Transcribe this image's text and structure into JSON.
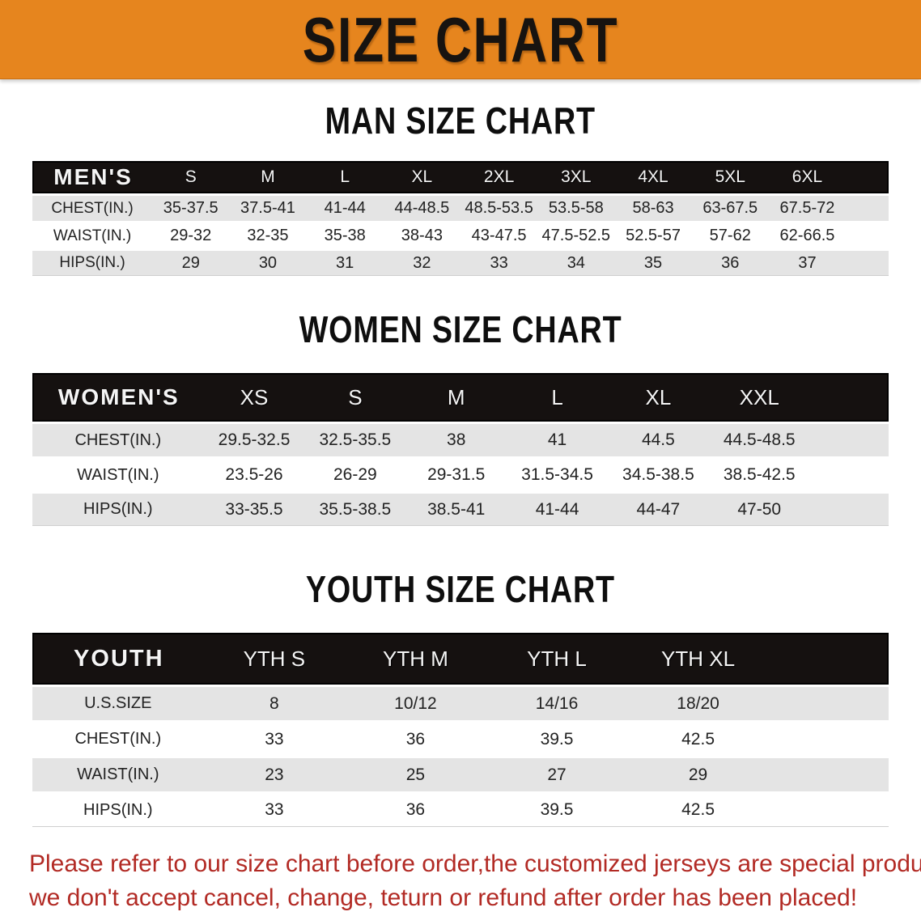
{
  "banner": {
    "title": "SIZE CHART",
    "bg_color": "#e6851e",
    "text_color": "#171310"
  },
  "sections": [
    {
      "heading": "MAN SIZE CHART",
      "table": {
        "header_label": "MEN'S",
        "columns": [
          "S",
          "M",
          "L",
          "XL",
          "2XL",
          "3XL",
          "4XL",
          "5XL",
          "6XL"
        ],
        "rows": [
          {
            "label": "CHEST(IN.)",
            "values": [
              "35-37.5",
              "37.5-41",
              "41-44",
              "44-48.5",
              "48.5-53.5",
              "53.5-58",
              "58-63",
              "63-67.5",
              "67.5-72"
            ]
          },
          {
            "label": "WAIST(IN.)",
            "values": [
              "29-32",
              "32-35",
              "35-38",
              "38-43",
              "43-47.5",
              "47.5-52.5",
              "52.5-57",
              "57-62",
              "62-66.5"
            ]
          },
          {
            "label": "HIPS(IN.)",
            "values": [
              "29",
              "30",
              "31",
              "32",
              "33",
              "34",
              "35",
              "36",
              "37"
            ]
          }
        ]
      }
    },
    {
      "heading": "WOMEN SIZE CHART",
      "table": {
        "header_label": "WOMEN'S",
        "columns": [
          "XS",
          "S",
          "M",
          "L",
          "XL",
          "XXL"
        ],
        "rows": [
          {
            "label": "CHEST(IN.)",
            "values": [
              "29.5-32.5",
              "32.5-35.5",
              "38",
              "41",
              "44.5",
              "44.5-48.5"
            ]
          },
          {
            "label": "WAIST(IN.)",
            "values": [
              "23.5-26",
              "26-29",
              "29-31.5",
              "31.5-34.5",
              "34.5-38.5",
              "38.5-42.5"
            ]
          },
          {
            "label": "HIPS(IN.)",
            "values": [
              "33-35.5",
              "35.5-38.5",
              "38.5-41",
              "41-44",
              "44-47",
              "47-50"
            ]
          }
        ]
      }
    },
    {
      "heading": "YOUTH SIZE CHART",
      "table": {
        "header_label": "YOUTH",
        "columns": [
          "YTH S",
          "YTH M",
          "YTH L",
          "YTH XL"
        ],
        "rows": [
          {
            "label": "U.S.SIZE",
            "values": [
              "8",
              "10/12",
              "14/16",
              "18/20"
            ]
          },
          {
            "label": "CHEST(IN.)",
            "values": [
              "33",
              "36",
              "39.5",
              "42.5"
            ]
          },
          {
            "label": "WAIST(IN.)",
            "values": [
              "23",
              "25",
              "27",
              "29"
            ]
          },
          {
            "label": "HIPS(IN.)",
            "values": [
              "33",
              "36",
              "39.5",
              "42.5"
            ]
          }
        ]
      }
    }
  ],
  "disclaimer": {
    "line1": "Please refer to our size chart before order,the customized jerseys are special products,",
    "line2": "we don't accept cancel, change, teturn or refund after order has been placed!",
    "color": "#b22a24"
  }
}
